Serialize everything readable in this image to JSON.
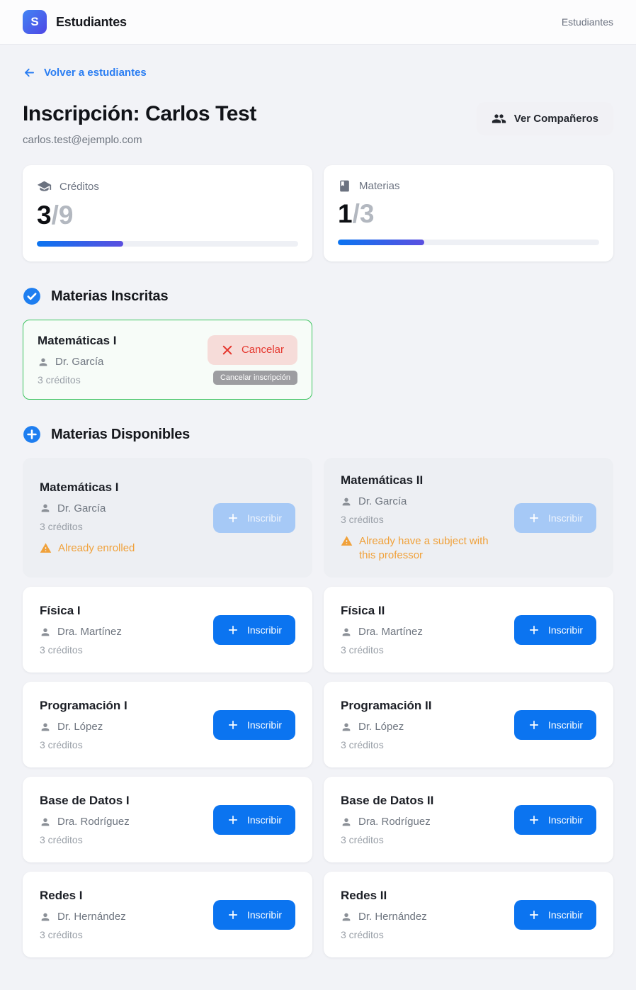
{
  "header": {
    "logo_letter": "S",
    "app_title": "Estudiantes",
    "nav_right": "Estudiantes"
  },
  "page": {
    "back_link": "Volver a estudiantes",
    "title": "Inscripción: Carlos Test",
    "email": "carlos.test@ejemplo.com",
    "companions_button": "Ver Compañeros"
  },
  "stats": [
    {
      "label": "Créditos",
      "icon": "graduation-cap-icon",
      "current": "3",
      "total": "/9",
      "progress_pct": 33
    },
    {
      "label": "Materias",
      "icon": "book-icon",
      "current": "1",
      "total": "/3",
      "progress_pct": 33
    }
  ],
  "enrolled_section": {
    "title": "Materias Inscritas",
    "icon": "check-circle-icon",
    "courses": [
      {
        "name": "Matemáticas I",
        "professor": "Dr. García",
        "credits": "3 créditos",
        "cancel_label": "Cancelar",
        "tooltip": "Cancelar inscripción"
      }
    ]
  },
  "available_section": {
    "title": "Materias Disponibles",
    "icon": "plus-circle-icon",
    "enroll_label": "Inscribir",
    "courses": [
      {
        "name": "Matemáticas I",
        "professor": "Dr. García",
        "credits": "3 créditos",
        "disabled": true,
        "warning": "Already enrolled"
      },
      {
        "name": "Matemáticas II",
        "professor": "Dr. García",
        "credits": "3 créditos",
        "disabled": true,
        "warning": "Already have a subject with this professor"
      },
      {
        "name": "Física I",
        "professor": "Dra. Martínez",
        "credits": "3 créditos",
        "disabled": false,
        "warning": ""
      },
      {
        "name": "Física II",
        "professor": "Dra. Martínez",
        "credits": "3 créditos",
        "disabled": false,
        "warning": ""
      },
      {
        "name": "Programación I",
        "professor": "Dr. López",
        "credits": "3 créditos",
        "disabled": false,
        "warning": ""
      },
      {
        "name": "Programación II",
        "professor": "Dr. López",
        "credits": "3 créditos",
        "disabled": false,
        "warning": ""
      },
      {
        "name": "Base de Datos I",
        "professor": "Dra. Rodríguez",
        "credits": "3 créditos",
        "disabled": false,
        "warning": ""
      },
      {
        "name": "Base de Datos II",
        "professor": "Dra. Rodríguez",
        "credits": "3 créditos",
        "disabled": false,
        "warning": ""
      },
      {
        "name": "Redes I",
        "professor": "Dr. Hernández",
        "credits": "3 créditos",
        "disabled": false,
        "warning": ""
      },
      {
        "name": "Redes II",
        "professor": "Dr. Hernández",
        "credits": "3 créditos",
        "disabled": false,
        "warning": ""
      }
    ]
  },
  "icons": {
    "back-arrow-icon": "←",
    "people-icon": "two-person silhouettes",
    "graduation-cap-icon": "mortarboard",
    "book-icon": "closed book",
    "check-circle-icon": "white check in blue circle",
    "plus-circle-icon": "white plus in blue circle",
    "person-icon": "single person silhouette",
    "x-icon": "✕",
    "plus-icon": "+",
    "warning-triangle-icon": "⚠"
  },
  "colors": {
    "accent_blue": "#0b74f0",
    "gradient_purple": "#5b4fe0",
    "success_green": "#3cc45f",
    "warning_orange": "#f0a13a",
    "danger_red": "#e5372e",
    "page_bg": "#f2f3f7",
    "disabled_card_bg": "#edeff3",
    "disabled_button_bg": "#a6c9f6"
  }
}
